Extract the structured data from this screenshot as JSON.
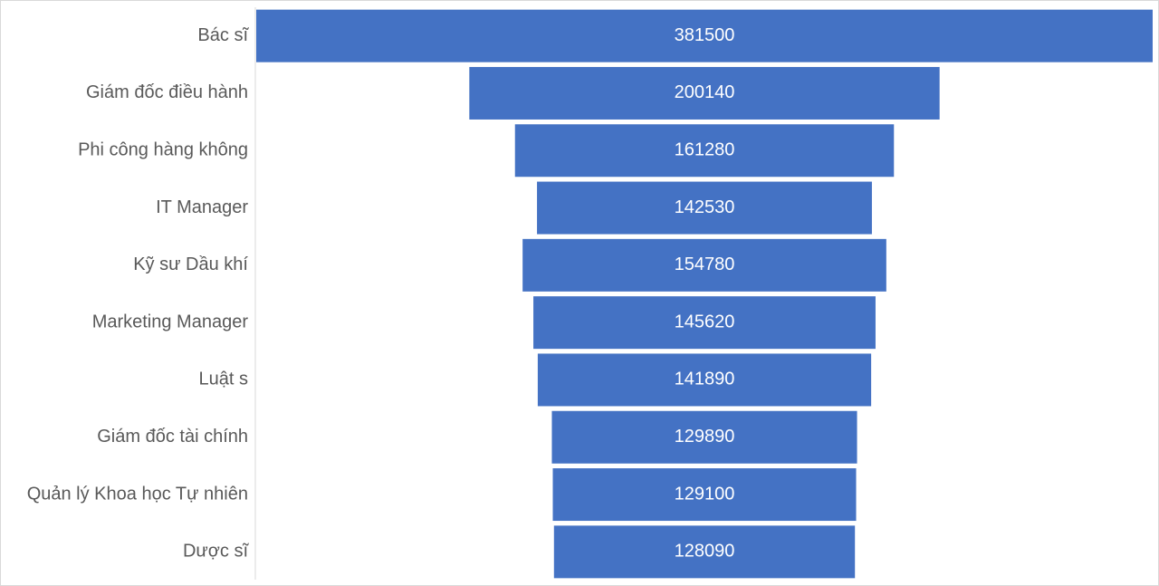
{
  "chart_data": {
    "type": "funnel",
    "color": "#4472c4",
    "categories": [
      "Bác sĩ",
      "Giám đốc điều hành",
      "Phi công hàng không",
      "IT Manager",
      "Kỹ sư Dầu khí",
      "Marketing Manager",
      "Luật s",
      "Giám đốc tài chính",
      "Quản lý Khoa học Tự nhiên",
      "Dược sĩ"
    ],
    "values": [
      381500,
      200140,
      161280,
      142530,
      154780,
      145620,
      141890,
      129890,
      129100,
      128090
    ]
  }
}
